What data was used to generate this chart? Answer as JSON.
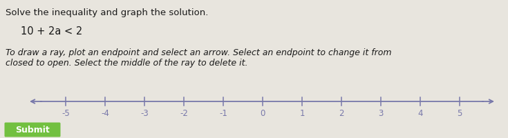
{
  "title_line1": "Solve the inequality and graph the solution.",
  "inequality": "10 + 2a < 2",
  "instruction_line1": "To draw a ray, plot an endpoint and select an arrow. Select an endpoint to change it from",
  "instruction_line2": "closed to open. Select the middle of the ray to delete it.",
  "submit_label": "Submit",
  "tick_values": [
    -5,
    -4,
    -3,
    -2,
    -1,
    0,
    1,
    2,
    3,
    4,
    5
  ],
  "tick_labels": [
    "-5",
    "-4",
    "-3",
    "-2",
    "-1",
    "0",
    "1",
    "2",
    "3",
    "4",
    "5"
  ],
  "bg_color": "#e8e5de",
  "text_color": "#1a1a1a",
  "nl_color": "#7878aa",
  "submit_bg": "#72c040",
  "submit_text_color": "#ffffff",
  "title_fontsize": 9.5,
  "inequality_fontsize": 10.5,
  "instruction_fontsize": 9.0,
  "tick_fontsize": 8.5,
  "submit_fontsize": 9.0
}
